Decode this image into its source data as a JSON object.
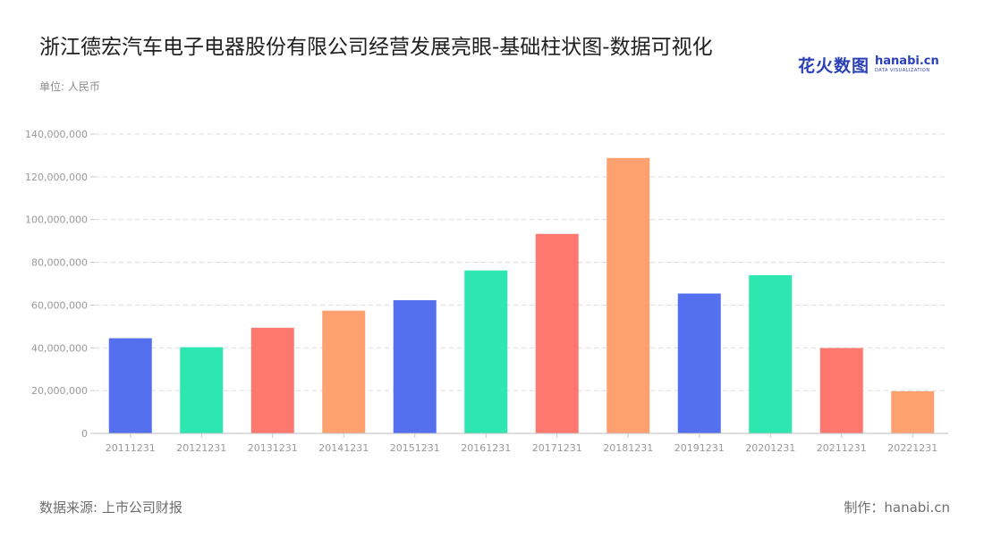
{
  "header": {
    "title": "浙江德宏汽车电子电器股份有限公司经营发展亮眼-基础柱状图-数据可视化",
    "unit": "单位: 人民币"
  },
  "logo": {
    "cn": "花火数图",
    "en": "hanabi.cn",
    "en_sub": "DATA VISUALIZATION",
    "color": "#2a3fb8"
  },
  "footer": {
    "source": "数据来源: 上市公司财报",
    "credit": "制作：hanabi.cn"
  },
  "chart_data": {
    "type": "bar",
    "title": "浙江德宏汽车电子电器股份有限公司经营发展亮眼-基础柱状图-数据可视化",
    "xlabel": "",
    "ylabel": "",
    "ylim": [
      0,
      140000000
    ],
    "yticks": [
      0,
      20000000,
      40000000,
      60000000,
      80000000,
      100000000,
      120000000,
      140000000
    ],
    "grid": true,
    "categories": [
      "20111231",
      "20121231",
      "20131231",
      "20141231",
      "20151231",
      "20161231",
      "20171231",
      "20181231",
      "20191231",
      "20201231",
      "20211231",
      "20221231"
    ],
    "values": [
      44500000,
      40300000,
      49400000,
      57400000,
      62300000,
      76200000,
      93300000,
      128800000,
      65400000,
      74000000,
      39900000,
      19700000
    ],
    "colors": [
      "#5470ee",
      "#2ee6b0",
      "#ff7870",
      "#ffa070",
      "#5470ee",
      "#2ee6b0",
      "#ff7870",
      "#ffa070",
      "#5470ee",
      "#2ee6b0",
      "#ff7870",
      "#ffa070"
    ]
  }
}
